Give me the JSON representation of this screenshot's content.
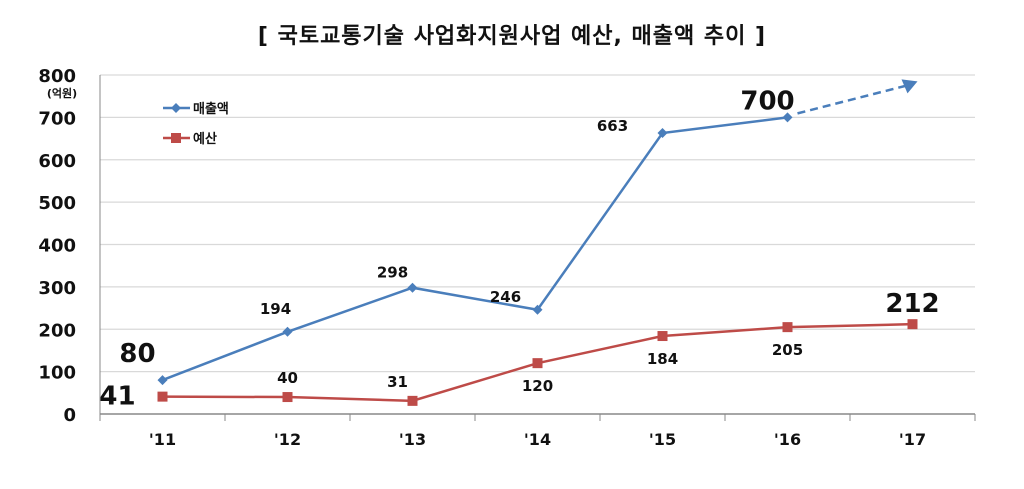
{
  "chart_data": {
    "type": "line",
    "title": "[ 국토교통기술 사업화지원사업 예산, 매출액 추이 ]",
    "ylabel": "(억원)",
    "categories": [
      "'11",
      "'12",
      "'13",
      "'14",
      "'15",
      "'16",
      "'17"
    ],
    "ylim": [
      0,
      800
    ],
    "yticks": [
      0,
      100,
      200,
      300,
      400,
      500,
      600,
      700,
      800
    ],
    "grid": true,
    "legend_position": "top-left",
    "series": [
      {
        "name": "매출액",
        "color": "#4a7ebb",
        "marker": "diamond",
        "values": [
          80,
          194,
          298,
          246,
          663,
          700,
          null
        ],
        "trend": "dashed arrow rising after '16"
      },
      {
        "name": "예산",
        "color": "#be4b48",
        "marker": "square",
        "values": [
          41,
          40,
          31,
          120,
          184,
          205,
          212
        ]
      }
    ]
  }
}
